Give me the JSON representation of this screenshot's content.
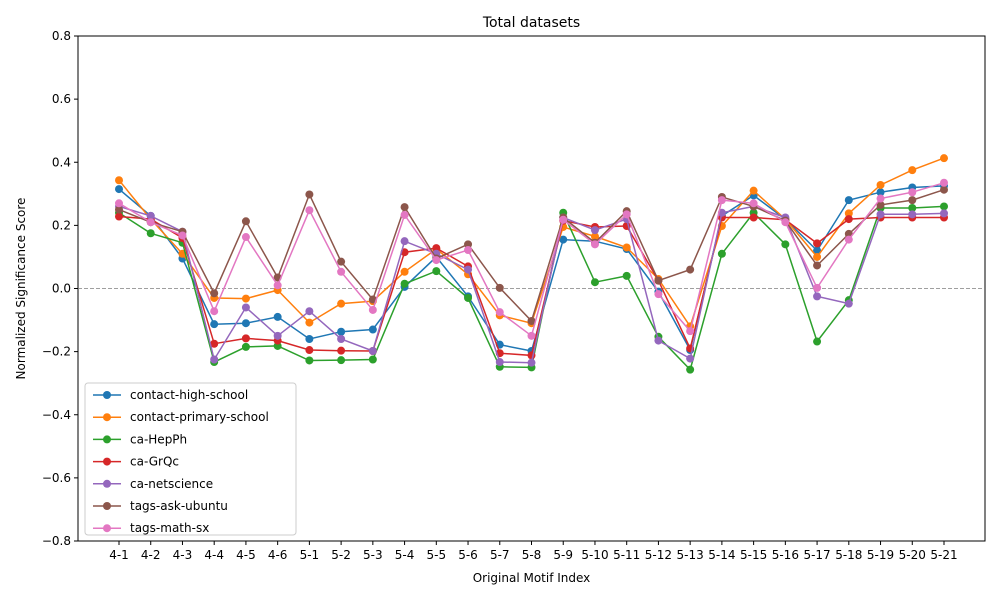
{
  "chart_data": {
    "type": "line",
    "title": "Total datasets",
    "xlabel": "Original Motif Index",
    "ylabel": "Normalized Significance Score",
    "ylim": [
      -0.8,
      0.8
    ],
    "yticks": [
      "−0.8",
      "−0.6",
      "−0.4",
      "−0.2",
      "0.0",
      "0.2",
      "0.4",
      "0.6",
      "0.8"
    ],
    "ytick_values": [
      -0.8,
      -0.6,
      -0.4,
      -0.2,
      0.0,
      0.2,
      0.4,
      0.6,
      0.8
    ],
    "categories": [
      "4-1",
      "4-2",
      "4-3",
      "4-4",
      "4-5",
      "4-6",
      "5-1",
      "5-2",
      "5-3",
      "5-4",
      "5-5",
      "5-6",
      "5-7",
      "5-8",
      "5-9",
      "5-10",
      "5-11",
      "5-12",
      "5-13",
      "5-14",
      "5-15",
      "5-16",
      "5-17",
      "5-18",
      "5-19",
      "5-20",
      "5-21"
    ],
    "reference_line": 0.0,
    "grid": false,
    "legend_position": "lower-left",
    "series": [
      {
        "name": "contact-high-school",
        "color": "#1f77b4",
        "values": [
          0.315,
          0.23,
          0.095,
          -0.113,
          -0.11,
          -0.09,
          -0.16,
          -0.137,
          -0.13,
          0.005,
          0.1,
          -0.025,
          -0.178,
          -0.198,
          0.155,
          0.15,
          0.125,
          -0.01,
          -0.195,
          0.23,
          0.295,
          0.22,
          0.12,
          0.28,
          0.305,
          0.32,
          0.325
        ]
      },
      {
        "name": "contact-primary-school",
        "color": "#ff7f0e",
        "values": [
          0.343,
          0.22,
          0.11,
          -0.03,
          -0.032,
          -0.005,
          -0.108,
          -0.048,
          -0.04,
          0.053,
          0.125,
          0.045,
          -0.085,
          -0.11,
          0.195,
          0.165,
          0.13,
          0.03,
          -0.12,
          0.198,
          0.31,
          0.22,
          0.1,
          0.238,
          0.328,
          0.375,
          0.413
        ]
      },
      {
        "name": "ca-HepPh",
        "color": "#2ca02c",
        "values": [
          0.24,
          0.175,
          0.145,
          -0.233,
          -0.185,
          -0.182,
          -0.228,
          -0.227,
          -0.225,
          0.015,
          0.055,
          -0.03,
          -0.248,
          -0.25,
          0.24,
          0.02,
          0.04,
          -0.153,
          -0.257,
          0.11,
          0.24,
          0.14,
          -0.168,
          -0.037,
          0.255,
          0.255,
          0.26
        ]
      },
      {
        "name": "ca-GrQc",
        "color": "#d62728",
        "values": [
          0.228,
          0.22,
          0.16,
          -0.175,
          -0.158,
          -0.165,
          -0.195,
          -0.197,
          -0.198,
          0.115,
          0.128,
          0.07,
          -0.205,
          -0.212,
          0.215,
          0.195,
          0.198,
          0.025,
          -0.19,
          0.225,
          0.225,
          0.218,
          0.143,
          0.22,
          0.225,
          0.225,
          0.225
        ]
      },
      {
        "name": "ca-netscience",
        "color": "#9467bd",
        "values": [
          0.26,
          0.23,
          0.18,
          -0.225,
          -0.06,
          -0.15,
          -0.072,
          -0.16,
          -0.198,
          0.15,
          0.11,
          0.06,
          -0.233,
          -0.235,
          0.225,
          0.185,
          0.22,
          -0.165,
          -0.222,
          0.24,
          0.26,
          0.225,
          -0.025,
          -0.048,
          0.235,
          0.235,
          0.238
        ]
      },
      {
        "name": "tags-ask-ubuntu",
        "color": "#8c564b",
        "values": [
          0.25,
          0.21,
          0.18,
          -0.015,
          0.213,
          0.035,
          0.298,
          0.085,
          -0.035,
          0.258,
          0.095,
          0.14,
          0.002,
          -0.103,
          0.225,
          0.145,
          0.245,
          0.025,
          0.06,
          0.29,
          0.26,
          0.215,
          0.073,
          0.173,
          0.265,
          0.28,
          0.313
        ]
      },
      {
        "name": "tags-math-sx",
        "color": "#e377c2",
        "values": [
          0.27,
          0.21,
          0.168,
          -0.072,
          0.163,
          0.01,
          0.248,
          0.053,
          -0.068,
          0.233,
          0.09,
          0.122,
          -0.075,
          -0.15,
          0.218,
          0.14,
          0.235,
          -0.018,
          -0.135,
          0.28,
          0.27,
          0.21,
          0.002,
          0.155,
          0.285,
          0.305,
          0.335
        ]
      }
    ]
  }
}
